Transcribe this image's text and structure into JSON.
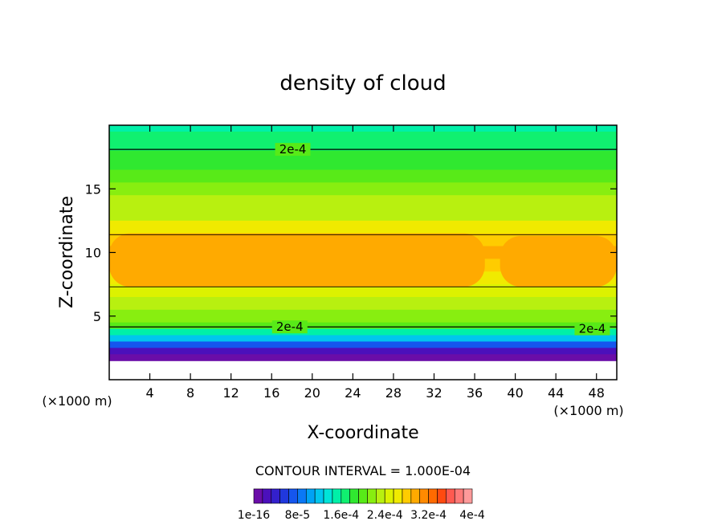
{
  "chart_data": {
    "type": "heatmap",
    "title": "density of cloud",
    "xlabel": "X-coordinate",
    "ylabel": "Z-coordinate",
    "x_unit": "(×1000 m)",
    "z_unit": "(×1000 m)",
    "xlim": [
      0,
      50
    ],
    "ylim": [
      0,
      20
    ],
    "x_ticks": [
      4,
      8,
      12,
      16,
      20,
      24,
      28,
      32,
      36,
      40,
      44,
      48
    ],
    "y_ticks": [
      5,
      10,
      15
    ],
    "contour_interval_text": "CONTOUR INTERVAL = 1.000E-04",
    "contour_labels": [
      {
        "text": "2e-4",
        "x": 16.5,
        "z": 18.1
      },
      {
        "text": "2e-4",
        "x": 16.2,
        "z": 4.15
      },
      {
        "text": "2e-4",
        "x": 46.0,
        "z": 4.0
      }
    ],
    "colorbar": {
      "min": 1e-16,
      "max": 0.0004,
      "labels": [
        "1e-16",
        "8e-5",
        "1.6e-4",
        "2.4e-4",
        "3.2e-4",
        "4e-4"
      ],
      "colors": [
        "#6a0da8",
        "#4b10bb",
        "#3320cc",
        "#2038dd",
        "#1556ee",
        "#0a78f5",
        "#00a2f5",
        "#00c6ee",
        "#00e4d8",
        "#00f0a8",
        "#10f070",
        "#30e830",
        "#58ea18",
        "#88ee10",
        "#b8f010",
        "#dcf200",
        "#f0ea00",
        "#ffcc00",
        "#ffaa00",
        "#ff8a00",
        "#ff6a00",
        "#ff4a10",
        "#ff5a50",
        "#ff7a78",
        "#ff9a9a"
      ]
    },
    "z_bands": [
      {
        "z": 19.5,
        "value": 0.00016
      },
      {
        "z": 18.0,
        "value": 0.000175
      },
      {
        "z": 16.5,
        "value": 0.00019
      },
      {
        "z": 15.5,
        "value": 0.0002
      },
      {
        "z": 14.5,
        "value": 0.00021
      },
      {
        "z": 13.5,
        "value": 0.000225
      },
      {
        "z": 12.5,
        "value": 0.00024
      },
      {
        "z": 11.5,
        "value": 0.00026
      },
      {
        "z": 10.5,
        "value": 0.00028
      },
      {
        "z": 9.5,
        "value": 0.00029
      },
      {
        "z": 8.5,
        "value": 0.00028
      },
      {
        "z": 7.5,
        "value": 0.00026
      },
      {
        "z": 6.5,
        "value": 0.000245
      },
      {
        "z": 5.5,
        "value": 0.00023
      },
      {
        "z": 4.5,
        "value": 0.000215
      },
      {
        "z": 4.0,
        "value": 0.0002
      },
      {
        "z": 3.5,
        "value": 0.00016
      },
      {
        "z": 3.0,
        "value": 0.00012
      },
      {
        "z": 2.5,
        "value": 7e-05
      },
      {
        "z": 2.0,
        "value": 2e-05
      },
      {
        "z": 1.5,
        "value": 1e-16
      }
    ],
    "core_regions": [
      {
        "x_start": 0,
        "x_end": 37,
        "z_bottom": 7.3,
        "z_top": 11.5,
        "value": 0.000295
      },
      {
        "x_start": 38.5,
        "x_end": 50,
        "z_bottom": 7.3,
        "z_top": 11.3,
        "value": 0.000295
      }
    ]
  }
}
